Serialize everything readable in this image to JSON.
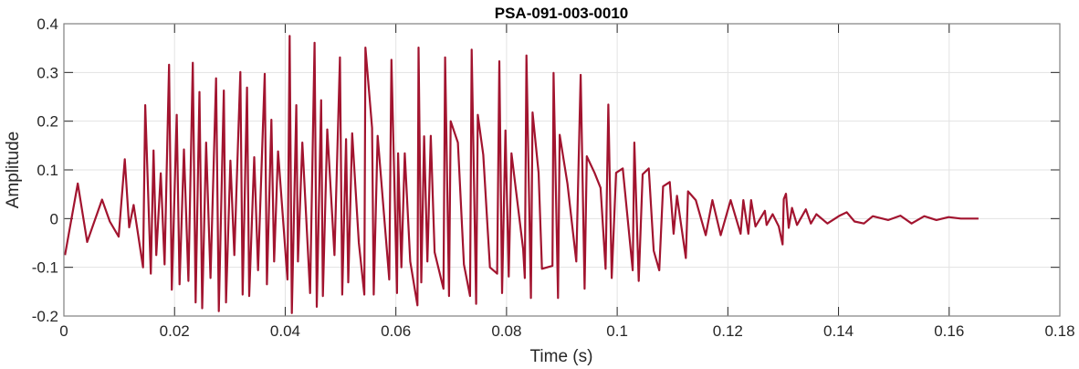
{
  "chart_data": {
    "type": "line",
    "title": "PSA-091-003-0010",
    "xlabel": "Time (s)",
    "ylabel": "Amplitude",
    "xlim": [
      0,
      0.18
    ],
    "ylim": [
      -0.2,
      0.4
    ],
    "xticks": [
      0,
      0.02,
      0.04,
      0.06,
      0.08,
      0.1,
      0.12,
      0.14,
      0.16,
      0.18
    ],
    "xtick_labels": [
      "0",
      "0.02",
      "0.04",
      "0.06",
      "0.08",
      "0.1",
      "0.12",
      "0.14",
      "0.16",
      "0.18"
    ],
    "yticks": [
      -0.2,
      -0.1,
      0,
      0.1,
      0.2,
      0.3,
      0.4
    ],
    "ytick_labels": [
      "-0.2",
      "-0.1",
      "0",
      "0.1",
      "0.2",
      "0.3",
      "0.4"
    ],
    "grid": true,
    "line_color": "#A2142F",
    "series": [
      {
        "x": [
          0.0002,
          0.0025,
          0.0042,
          0.0069,
          0.0083,
          0.0099,
          0.011,
          0.0118,
          0.0126,
          0.0143,
          0.0147,
          0.0157,
          0.0162,
          0.0167,
          0.0175,
          0.0182,
          0.019,
          0.0195,
          0.0204,
          0.0209,
          0.0217,
          0.0225,
          0.0233,
          0.0238,
          0.0245,
          0.025,
          0.0257,
          0.0265,
          0.0275,
          0.028,
          0.0289,
          0.0293,
          0.0301,
          0.0308,
          0.0319,
          0.0323,
          0.0331,
          0.0335,
          0.0344,
          0.0351,
          0.0363,
          0.0367,
          0.0375,
          0.038,
          0.0387,
          0.0404,
          0.0408,
          0.0412,
          0.042,
          0.0423,
          0.0431,
          0.0445,
          0.0453,
          0.0457,
          0.0465,
          0.0468,
          0.0476,
          0.0489,
          0.0499,
          0.0503,
          0.051,
          0.0514,
          0.0521,
          0.0533,
          0.0543,
          0.0545,
          0.0557,
          0.056,
          0.0567,
          0.0588,
          0.0592,
          0.0602,
          0.0604,
          0.061,
          0.0616,
          0.0626,
          0.0639,
          0.0641,
          0.0646,
          0.0651,
          0.0657,
          0.0663,
          0.067,
          0.0686,
          0.0689,
          0.0696,
          0.0699,
          0.0712,
          0.0723,
          0.0734,
          0.0737,
          0.0745,
          0.0748,
          0.0758,
          0.077,
          0.0783,
          0.0787,
          0.0792,
          0.0798,
          0.0804,
          0.0809,
          0.083,
          0.0833,
          0.0836,
          0.0844,
          0.0847,
          0.0858,
          0.0864,
          0.0883,
          0.0885,
          0.0893,
          0.0896,
          0.091,
          0.0926,
          0.0934,
          0.0941,
          0.0945,
          0.0959,
          0.097,
          0.0979,
          0.0984,
          0.099,
          0.0998,
          0.101,
          0.1028,
          0.1031,
          0.1039,
          0.1046,
          0.1057,
          0.1066,
          0.1076,
          0.1083,
          0.1095,
          0.1102,
          0.1108,
          0.1124,
          0.1128,
          0.1142,
          0.116,
          0.1172,
          0.1187,
          0.1205,
          0.1223,
          0.1228,
          0.1237,
          0.1242,
          0.125,
          0.1267,
          0.127,
          0.1281,
          0.1292,
          0.1299,
          0.1301,
          0.1305,
          0.131,
          0.1316,
          0.1325,
          0.1341,
          0.135,
          0.136,
          0.138,
          0.1402,
          0.1415,
          0.1429,
          0.1446,
          0.1462,
          0.149,
          0.1512,
          0.1532,
          0.1555,
          0.1577,
          0.1599,
          0.1621,
          0.1653
        ],
        "y": [
          -0.075,
          0.072,
          -0.048,
          0.039,
          -0.006,
          -0.037,
          0.122,
          -0.018,
          0.028,
          -0.1,
          0.233,
          -0.113,
          0.14,
          -0.075,
          0.093,
          -0.094,
          0.316,
          -0.146,
          0.213,
          -0.135,
          0.142,
          -0.128,
          0.32,
          -0.172,
          0.26,
          -0.184,
          0.156,
          -0.122,
          0.288,
          -0.19,
          0.263,
          -0.172,
          0.119,
          -0.075,
          0.301,
          -0.156,
          0.269,
          -0.159,
          0.126,
          -0.106,
          0.297,
          -0.135,
          0.203,
          -0.088,
          0.138,
          -0.125,
          0.375,
          -0.194,
          0.233,
          -0.088,
          0.156,
          -0.153,
          0.361,
          -0.181,
          0.243,
          -0.159,
          0.183,
          -0.075,
          0.331,
          -0.156,
          0.163,
          -0.131,
          0.175,
          -0.05,
          -0.156,
          0.351,
          0.186,
          -0.156,
          0.17,
          -0.125,
          0.326,
          -0.153,
          0.134,
          -0.1,
          0.134,
          -0.088,
          -0.178,
          0.351,
          -0.131,
          0.169,
          -0.088,
          0.17,
          -0.069,
          -0.144,
          0.331,
          -0.159,
          0.2,
          0.156,
          -0.094,
          -0.159,
          0.347,
          -0.175,
          0.213,
          0.131,
          -0.1,
          -0.113,
          0.323,
          -0.153,
          0.181,
          -0.119,
          0.134,
          -0.063,
          -0.122,
          0.335,
          -0.163,
          0.218,
          0.094,
          -0.103,
          -0.097,
          0.299,
          -0.163,
          0.172,
          0.072,
          -0.088,
          0.295,
          -0.144,
          0.128,
          0.094,
          0.063,
          -0.103,
          0.234,
          -0.122,
          0.094,
          0.103,
          -0.106,
          0.156,
          -0.128,
          0.091,
          0.103,
          -0.066,
          -0.106,
          0.066,
          0.075,
          -0.031,
          0.047,
          -0.081,
          0.056,
          0.038,
          -0.034,
          0.038,
          -0.034,
          0.038,
          -0.031,
          0.038,
          -0.031,
          0.038,
          -0.016,
          0.016,
          -0.013,
          0.009,
          -0.016,
          -0.053,
          0.04,
          0.051,
          -0.019,
          0.022,
          -0.013,
          0.019,
          -0.01,
          0.009,
          -0.01,
          0.006,
          0.013,
          -0.006,
          -0.01,
          0.005,
          -0.003,
          0.006,
          -0.01,
          0.005,
          -0.003,
          0.003,
          0.0,
          0.0
        ]
      }
    ]
  }
}
